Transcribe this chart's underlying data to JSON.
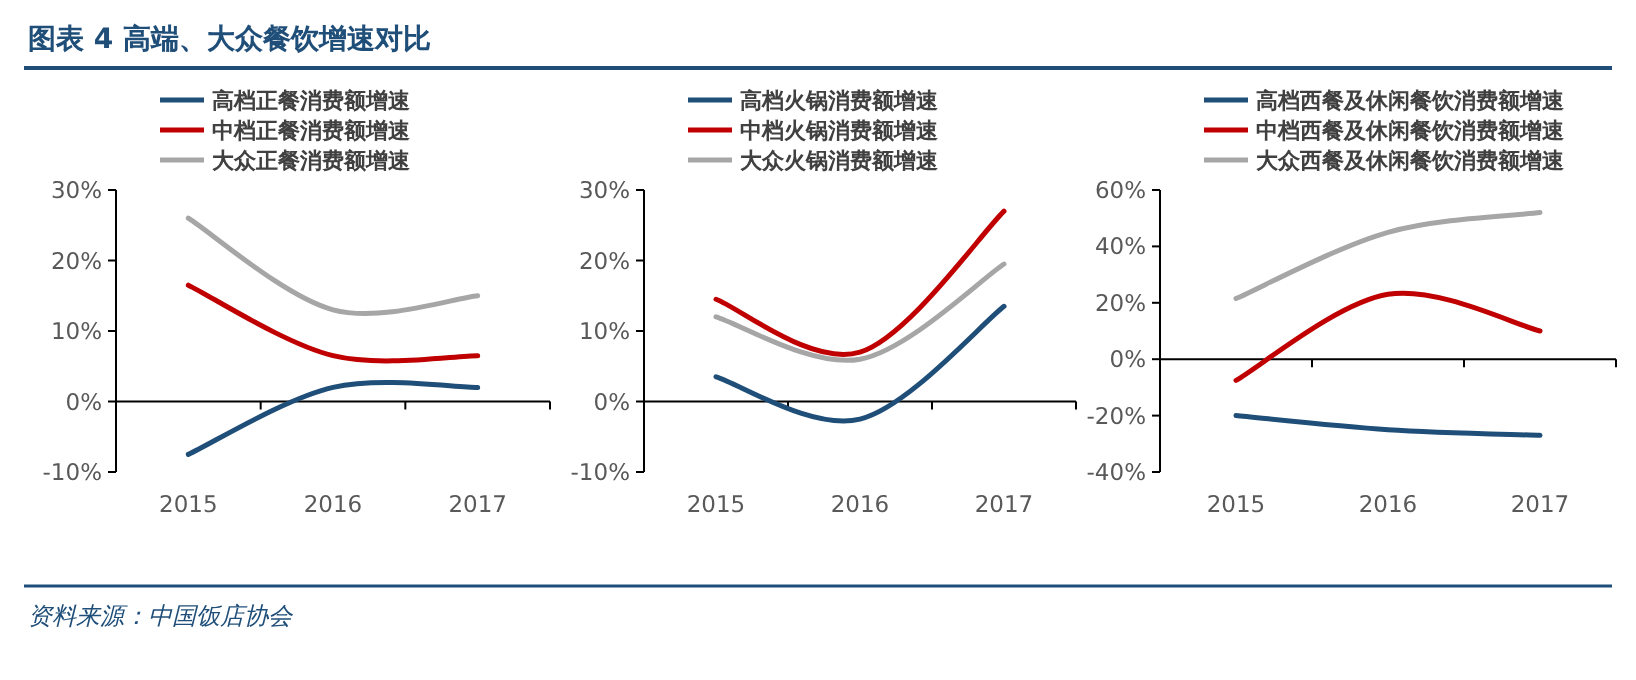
{
  "chart_data": [
    {
      "type": "line",
      "title": "图表 4  高端、大众餐饮增速对比",
      "annotations": [
        "资料来源：中国饭店协会"
      ],
      "categories": [
        "2015",
        "2016",
        "2017"
      ],
      "legend": "top",
      "ylim": [
        -10,
        30
      ],
      "yticks": [
        {
          "value": -10,
          "label": "-10%"
        },
        {
          "value": 0,
          "label": "0%"
        },
        {
          "value": 10,
          "label": "10%"
        },
        {
          "value": 20,
          "label": "20%"
        },
        {
          "value": 30,
          "label": "30%"
        }
      ],
      "series": [
        {
          "name": "高档正餐消费额增速",
          "color": "#1f4e79",
          "values": [
            -7.5,
            2,
            2
          ]
        },
        {
          "name": "中档正餐消费额增速",
          "color": "#c00000",
          "values": [
            16.5,
            6.5,
            6.5
          ]
        },
        {
          "name": "大众正餐消费额增速",
          "color": "#a6a6a6",
          "values": [
            26,
            13,
            15
          ]
        }
      ]
    },
    {
      "type": "line",
      "categories": [
        "2015",
        "2016",
        "2017"
      ],
      "legend": "top",
      "ylim": [
        -10,
        30
      ],
      "yticks": [
        {
          "value": -10,
          "label": "-10%"
        },
        {
          "value": 0,
          "label": "0%"
        },
        {
          "value": 10,
          "label": "10%"
        },
        {
          "value": 20,
          "label": "20%"
        },
        {
          "value": 30,
          "label": "30%"
        }
      ],
      "series": [
        {
          "name": "高档火锅消费额增速",
          "color": "#1f4e79",
          "values": [
            3.5,
            -2.5,
            13.5
          ]
        },
        {
          "name": "中档火锅消费额增速",
          "color": "#c00000",
          "values": [
            14.5,
            7,
            27
          ]
        },
        {
          "name": "大众火锅消费额增速",
          "color": "#a6a6a6",
          "values": [
            12,
            6,
            19.5
          ]
        }
      ]
    },
    {
      "type": "line",
      "categories": [
        "2015",
        "2016",
        "2017"
      ],
      "legend": "top",
      "ylim": [
        -40,
        60
      ],
      "yticks": [
        {
          "value": -40,
          "label": "-40%"
        },
        {
          "value": -20,
          "label": "-20%"
        },
        {
          "value": 0,
          "label": "0%"
        },
        {
          "value": 20,
          "label": "20%"
        },
        {
          "value": 40,
          "label": "40%"
        },
        {
          "value": 60,
          "label": "60%"
        }
      ],
      "series": [
        {
          "name": "高档西餐及休闲餐饮消费额增速",
          "color": "#1f4e79",
          "values": [
            -20,
            -25,
            -27
          ]
        },
        {
          "name": "中档西餐及休闲餐饮消费额增速",
          "color": "#c00000",
          "values": [
            -7.5,
            23,
            10
          ]
        },
        {
          "name": "大众西餐及休闲餐饮消费额增速",
          "color": "#a6a6a6",
          "values": [
            21.5,
            45,
            52
          ]
        }
      ]
    }
  ]
}
